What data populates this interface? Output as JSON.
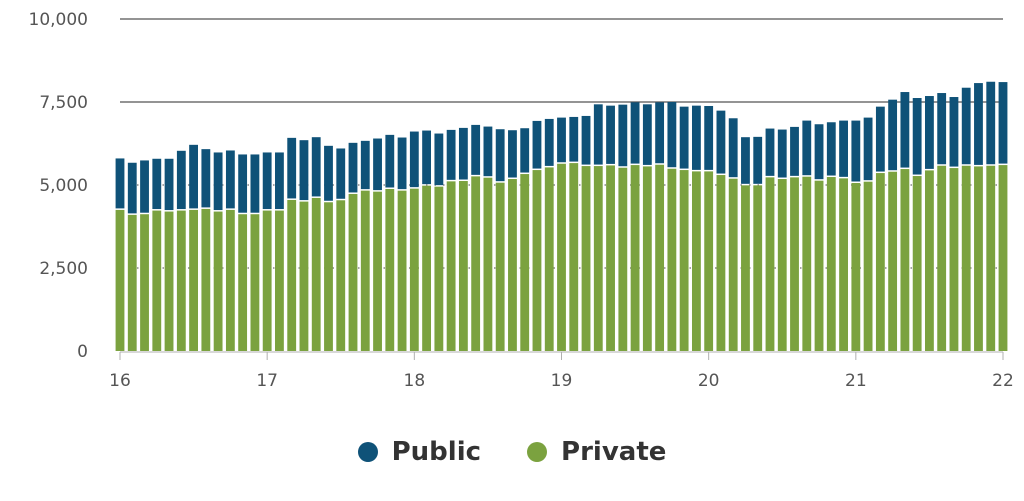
{
  "chart_data": {
    "type": "bar",
    "stacked": true,
    "x": [
      16.0,
      16.0833,
      16.1667,
      16.25,
      16.3333,
      16.4167,
      16.5,
      16.5833,
      16.6667,
      16.75,
      16.8333,
      16.9167,
      17.0,
      17.0833,
      17.1667,
      17.25,
      17.3333,
      17.4167,
      17.5,
      17.5833,
      17.6667,
      17.75,
      17.8333,
      17.9167,
      18.0,
      18.0833,
      18.1667,
      18.25,
      18.3333,
      18.4167,
      18.5,
      18.5833,
      18.6667,
      18.75,
      18.8333,
      18.9167,
      19.0,
      19.0833,
      19.1667,
      19.25,
      19.3333,
      19.4167,
      19.5,
      19.5833,
      19.6667,
      19.75,
      19.8333,
      19.9167,
      20.0,
      20.0833,
      20.1667,
      20.25,
      20.3333,
      20.4167,
      20.5,
      20.5833,
      20.6667,
      20.75,
      20.8333,
      20.9167,
      21.0,
      21.0833,
      21.1667,
      21.25,
      21.3333,
      21.4167,
      21.5,
      21.5833,
      21.6667,
      21.75,
      21.8333,
      21.9167,
      22.0
    ],
    "series": [
      {
        "name": "Private",
        "color": "#7ba23f",
        "values": [
          4250,
          4100,
          4120,
          4230,
          4200,
          4230,
          4250,
          4280,
          4200,
          4250,
          4120,
          4120,
          4230,
          4230,
          4550,
          4500,
          4610,
          4480,
          4540,
          4730,
          4830,
          4800,
          4880,
          4830,
          4890,
          4980,
          4950,
          5110,
          5120,
          5260,
          5220,
          5070,
          5180,
          5330,
          5450,
          5530,
          5640,
          5660,
          5570,
          5570,
          5590,
          5520,
          5600,
          5560,
          5610,
          5490,
          5450,
          5410,
          5410,
          5300,
          5190,
          4990,
          4990,
          5230,
          5180,
          5230,
          5250,
          5130,
          5240,
          5200,
          5060,
          5100,
          5360,
          5400,
          5480,
          5270,
          5440,
          5580,
          5510,
          5580,
          5560,
          5580,
          5600
        ]
      },
      {
        "name": "Public",
        "color": "#0f5278",
        "values": [
          1550,
          1570,
          1620,
          1560,
          1590,
          1800,
          1960,
          1800,
          1780,
          1790,
          1800,
          1800,
          1750,
          1750,
          1870,
          1850,
          1830,
          1700,
          1560,
          1540,
          1500,
          1600,
          1630,
          1600,
          1720,
          1660,
          1600,
          1550,
          1600,
          1550,
          1540,
          1610,
          1470,
          1380,
          1480,
          1460,
          1390,
          1390,
          1510,
          1860,
          1800,
          1900,
          1890,
          1870,
          1880,
          2010,
          1910,
          1980,
          1970,
          1940,
          1820,
          1450,
          1460,
          1470,
          1490,
          1520,
          1690,
          1700,
          1650,
          1740,
          1880,
          1930,
          2000,
          2170,
          2320,
          2350,
          2240,
          2190,
          2140,
          2350,
          2510,
          2530,
          2500
        ]
      }
    ],
    "yticks": [
      "0",
      "2,500",
      "5,000",
      "7,500",
      "10,000"
    ],
    "xticks": [
      "16",
      "17",
      "18",
      "19",
      "20",
      "21",
      "22"
    ],
    "ylim": [
      0,
      10000
    ],
    "xlim": [
      16,
      22
    ],
    "grid": true,
    "legend_position": "bottom-center"
  },
  "legend": [
    {
      "label": "Public",
      "color": "#0f5278"
    },
    {
      "label": "Private",
      "color": "#7ba23f"
    }
  ]
}
